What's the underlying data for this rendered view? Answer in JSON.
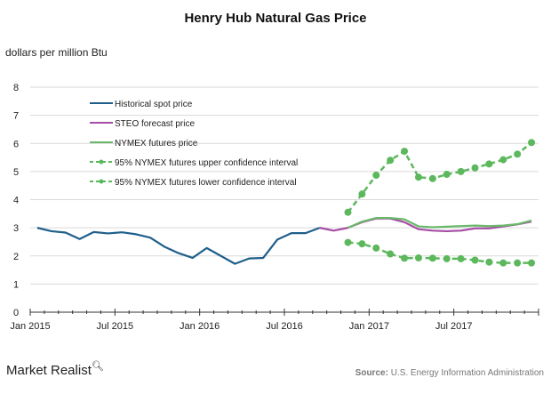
{
  "chart_data": {
    "type": "line",
    "title": "Henry Hub Natural Gas Price",
    "ylabel": "dollars per million Btu",
    "xlabel": "",
    "ylim": [
      0,
      8
    ],
    "yticks": [
      0,
      1,
      2,
      3,
      4,
      5,
      6,
      7,
      8
    ],
    "xticks": [
      "Jan 2015",
      "Jul 2015",
      "Jan 2016",
      "Jul 2016",
      "Jan 2017",
      "Jul 2017"
    ],
    "x_range_months": [
      "2015-01",
      "2017-12"
    ],
    "grid": true,
    "legend_position": "top-left",
    "series": [
      {
        "name": "Historical spot price",
        "color": "#1f5f8b",
        "style": "solid",
        "start": "2015-01",
        "values": [
          3.0,
          2.88,
          2.83,
          2.6,
          2.85,
          2.8,
          2.84,
          2.77,
          2.65,
          2.33,
          2.1,
          1.93,
          2.28,
          2.0,
          1.72,
          1.91,
          1.93,
          2.58,
          2.81,
          2.81,
          3.0
        ]
      },
      {
        "name": "STEO forecast price",
        "color": "#a64ca6",
        "style": "solid",
        "start": "2016-09",
        "values": [
          3.0,
          2.9,
          3.0,
          3.2,
          3.33,
          3.33,
          3.2,
          2.95,
          2.9,
          2.88,
          2.9,
          2.98,
          2.98,
          3.05,
          3.12,
          3.22
        ]
      },
      {
        "name": "NYMEX futures price",
        "color": "#6ab96a",
        "style": "solid",
        "start": "2016-11",
        "values": [
          3.0,
          3.22,
          3.35,
          3.35,
          3.3,
          3.05,
          3.02,
          3.04,
          3.06,
          3.08,
          3.06,
          3.08,
          3.13,
          3.26
        ]
      },
      {
        "name": "95% NYMEX futures upper confidence interval",
        "color": "#5cb85c",
        "style": "dashed-markers",
        "start": "2016-11",
        "values": [
          3.55,
          4.2,
          4.87,
          5.4,
          5.72,
          4.8,
          4.75,
          4.9,
          5.0,
          5.13,
          5.27,
          5.42,
          5.62,
          6.03
        ]
      },
      {
        "name": "95% NYMEX futures lower confidence interval",
        "color": "#5cb85c",
        "style": "dashed-markers",
        "start": "2016-11",
        "values": [
          2.48,
          2.43,
          2.28,
          2.07,
          1.92,
          1.93,
          1.92,
          1.9,
          1.9,
          1.85,
          1.78,
          1.75,
          1.75,
          1.75
        ]
      }
    ]
  },
  "footer": {
    "brand": "Market Realist",
    "source_label": "Source:",
    "source_text": "U.S. Energy Information Administration"
  }
}
